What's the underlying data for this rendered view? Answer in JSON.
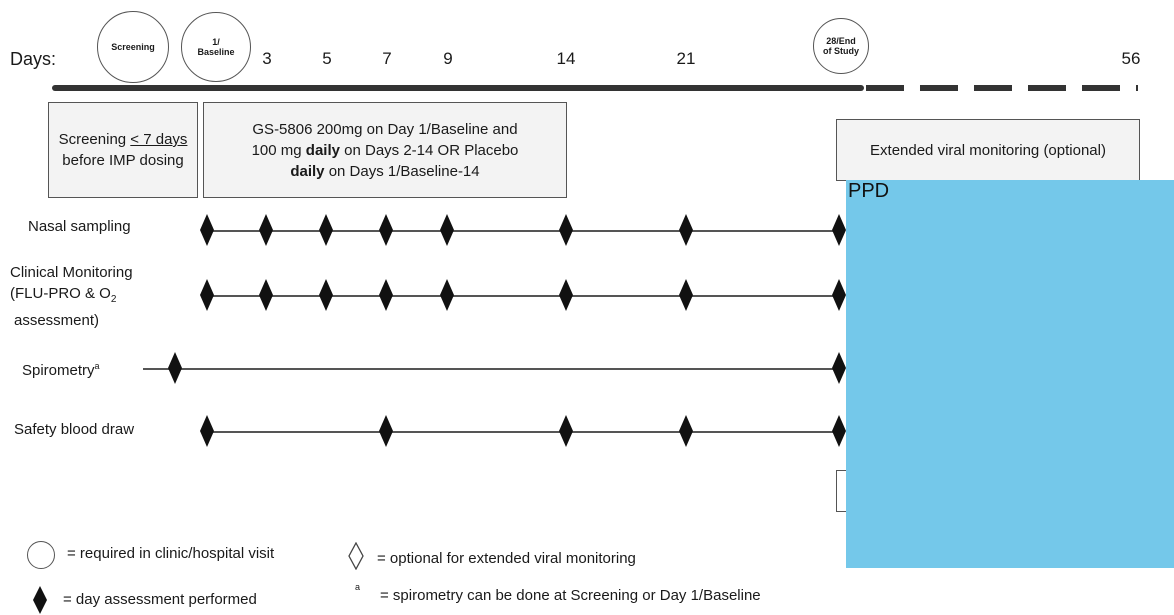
{
  "header": {
    "days_label": "Days:",
    "day_numbers": [
      "3",
      "5",
      "7",
      "9",
      "14",
      "21",
      "56"
    ],
    "screening_circle": "Screening",
    "baseline_circle_line1": "1/",
    "baseline_circle_line2": "Baseline",
    "end_circle_line1": "28/End",
    "end_circle_line2": "of Study"
  },
  "boxes": {
    "screening_line1_a": "Screening ",
    "screening_line1_b": "< 7 days",
    "screening_line2": "before IMP dosing",
    "dosing_line1": "GS-5806 200mg on Day 1/Baseline and",
    "dosing_line2_a": "100 mg ",
    "dosing_line2_b": "daily",
    "dosing_line2_c": " on Days 2-14 OR Placebo",
    "dosing_line3_a": "daily",
    "dosing_line3_b": " on Days 1/Baseline-14",
    "extended": "Extended viral monitoring (optional)"
  },
  "rows": {
    "nasal": "Nasal sampling",
    "clinical_line1": "Clinical Monitoring",
    "clinical_line2_a": "(FLU-PRO & O",
    "clinical_line2_sub": "2",
    "clinical_line3": "assessment)",
    "spirometry": "Spirometry",
    "spirometry_sup": "a",
    "safety": "Safety blood draw"
  },
  "legend": {
    "circle": "= required in clinic/hospital visit",
    "open_diamond": "= optional for extended viral monitoring",
    "filled_diamond": "= day assessment performed",
    "footnote_mark": "a",
    "footnote": "= spirometry can be done at Screening or Day 1/Baseline"
  },
  "redaction": {
    "label": "PPD",
    "color": "#74c8ea"
  }
}
